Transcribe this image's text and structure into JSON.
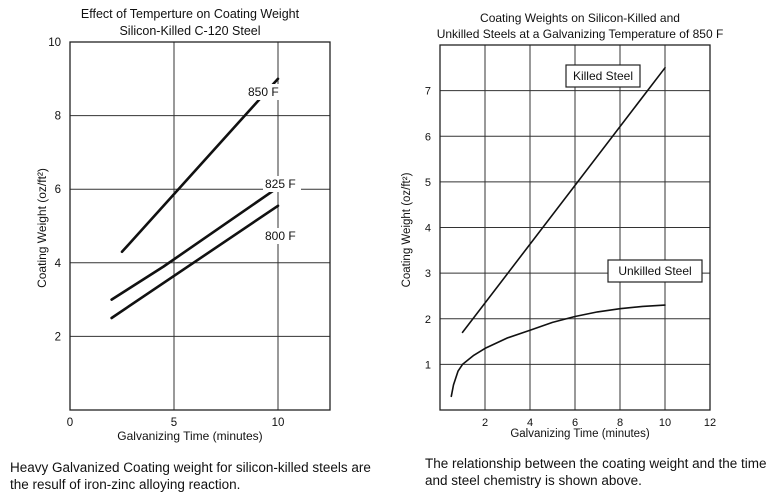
{
  "chart_data": [
    {
      "type": "line",
      "title": "Effect of Temperture on Coating Weight",
      "subtitle": "Silicon-Killed C-120 Steel",
      "xlabel": "Galvanizing Time (minutes)",
      "ylabel": "Coating Weight (oz/ft²)",
      "xlim": [
        0,
        12.5
      ],
      "ylim": [
        0,
        10
      ],
      "xticks": [
        0,
        5,
        10
      ],
      "yticks": [
        2,
        4,
        6,
        8,
        10
      ],
      "grid": true,
      "series": [
        {
          "name": "850 F",
          "x": [
            2.5,
            10
          ],
          "y": [
            4.3,
            9.0
          ]
        },
        {
          "name": "825 F",
          "x": [
            2,
            4.5,
            10
          ],
          "y": [
            3.0,
            3.9,
            6.05
          ]
        },
        {
          "name": "800 F",
          "x": [
            2,
            10
          ],
          "y": [
            2.5,
            5.55
          ]
        }
      ]
    },
    {
      "type": "line",
      "title": "Coating Weights on Silicon-Killed and",
      "subtitle": "Unkilled Steels at a Galvanizing Temperature of 850 F",
      "xlabel": "Galvanizing Time (minutes)",
      "ylabel": "Coating Weight (oz/ft²)",
      "xlim": [
        0,
        12
      ],
      "ylim": [
        0,
        8
      ],
      "xticks": [
        2,
        4,
        6,
        8,
        10,
        12
      ],
      "yticks": [
        1,
        2,
        3,
        4,
        5,
        6,
        7
      ],
      "grid": true,
      "series": [
        {
          "name": "Killed Steel",
          "x": [
            1,
            10
          ],
          "y": [
            1.7,
            7.5
          ]
        },
        {
          "name": "Unkilled Steel",
          "x": [
            0.5,
            0.6,
            0.8,
            1,
            1.5,
            2,
            3,
            4,
            5,
            6,
            7,
            8,
            9,
            10
          ],
          "y": [
            0.3,
            0.55,
            0.85,
            1.0,
            1.2,
            1.35,
            1.58,
            1.75,
            1.92,
            2.05,
            2.15,
            2.22,
            2.27,
            2.3
          ]
        }
      ]
    }
  ],
  "captions": {
    "left": "Heavy Galvanized Coating weight for silicon-killed steels are the resulf of iron-zinc alloying reaction.",
    "right": "The relationship between the coating weight and the time and steel chemistry is shown above."
  }
}
